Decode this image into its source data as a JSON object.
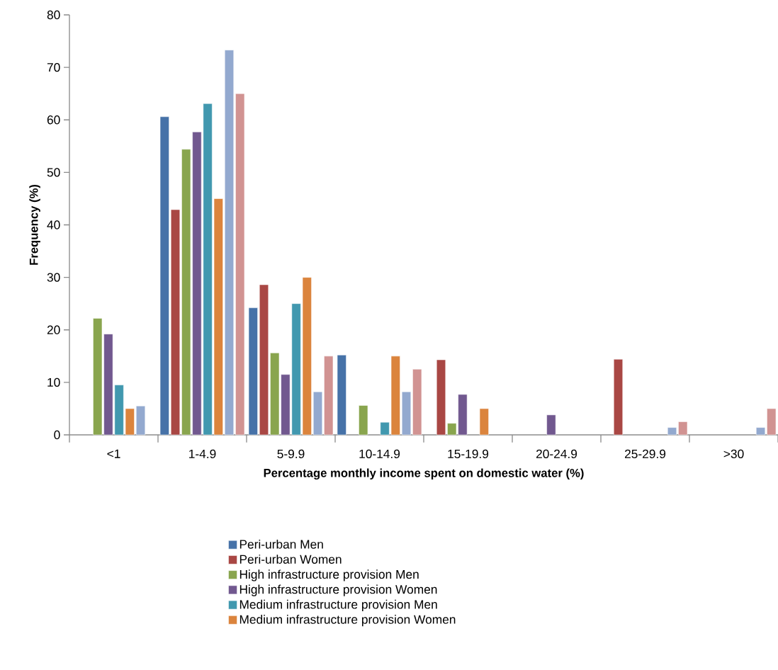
{
  "chart_data": {
    "type": "bar",
    "xlabel": "Percentage monthly income spent on domestic water  (%)",
    "ylabel": "Frequency (%)",
    "categories": [
      "<1",
      "1-4.9",
      "5-9.9",
      "10-14.9",
      "15-19.9",
      "20-24.9",
      "25-29.9",
      ">30"
    ],
    "series": [
      {
        "name": "Peri-urban Men",
        "color": "#4672a8",
        "values": [
          null,
          60.6,
          24.2,
          15.2,
          null,
          null,
          null,
          null
        ]
      },
      {
        "name": "Peri-urban Women",
        "color": "#a94744",
        "values": [
          null,
          42.9,
          28.6,
          null,
          14.3,
          null,
          14.4,
          null
        ]
      },
      {
        "name": "High infrastructure provision Men",
        "color": "#89a54e",
        "values": [
          22.2,
          54.4,
          15.6,
          5.6,
          2.2,
          null,
          null,
          null
        ]
      },
      {
        "name": "High infrastructure provision Women",
        "color": "#71588f",
        "values": [
          19.2,
          57.7,
          11.5,
          null,
          7.7,
          3.8,
          null,
          null
        ]
      },
      {
        "name": "Medium infrastructure provision Men",
        "color": "#4198af",
        "values": [
          9.5,
          63.1,
          25,
          2.4,
          null,
          null,
          null,
          null
        ]
      },
      {
        "name": "Medium infrastructure provision Women",
        "color": "#db843d",
        "values": [
          5,
          45,
          30,
          15,
          5,
          null,
          null,
          null
        ]
      },
      {
        "color": "#93a9cf",
        "values": [
          5.5,
          73.3,
          8.2,
          8.2,
          null,
          null,
          1.4,
          1.4
        ]
      },
      {
        "color": "#d19392",
        "values": [
          null,
          65,
          15,
          12.5,
          null,
          null,
          2.5,
          5
        ]
      }
    ],
    "ylim": [
      0,
      80
    ],
    "yticks": [
      0,
      10,
      20,
      30,
      40,
      50,
      60,
      70,
      80
    ],
    "grid": false,
    "legend": "bottom"
  }
}
